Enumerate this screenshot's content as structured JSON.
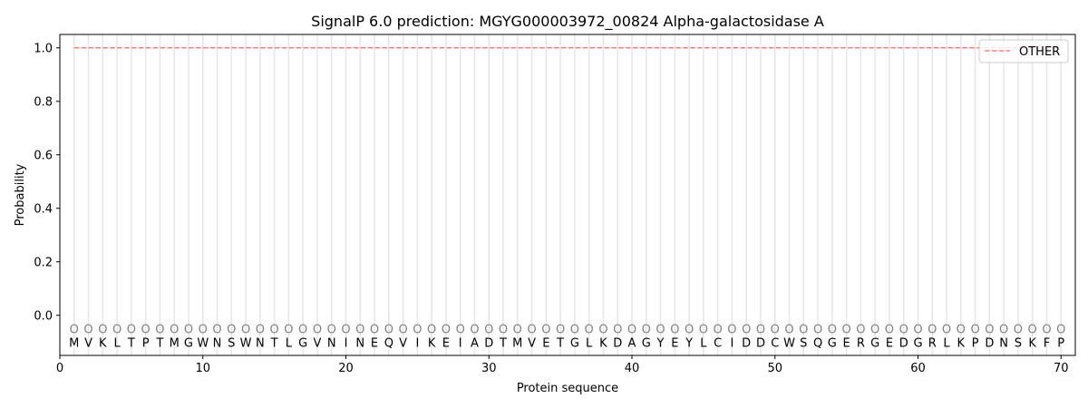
{
  "chart_data": {
    "type": "line",
    "title": "SignalP 6.0 prediction: MGYG000003972_00824 Alpha-galactosidase A",
    "xlabel": "Protein sequence",
    "ylabel": "Probability",
    "xlim": [
      0,
      71
    ],
    "ylim": [
      -0.15,
      1.05
    ],
    "xticks": [
      0,
      10,
      20,
      30,
      40,
      50,
      60,
      70
    ],
    "yticks": [
      "0.0",
      "0.2",
      "0.4",
      "0.6",
      "0.8",
      "1.0"
    ],
    "grid": "vertical lines at each residue",
    "legend_position": "top-right",
    "sequence": [
      "M",
      "V",
      "K",
      "L",
      "T",
      "P",
      "T",
      "M",
      "G",
      "W",
      "N",
      "S",
      "W",
      "N",
      "T",
      "L",
      "G",
      "V",
      "N",
      "I",
      "N",
      "E",
      "Q",
      "V",
      "I",
      "K",
      "E",
      "I",
      "A",
      "D",
      "T",
      "M",
      "V",
      "E",
      "T",
      "G",
      "L",
      "K",
      "D",
      "A",
      "G",
      "Y",
      "E",
      "Y",
      "L",
      "C",
      "I",
      "D",
      "D",
      "C",
      "W",
      "S",
      "Q",
      "G",
      "E",
      "R",
      "G",
      "E",
      "D",
      "G",
      "R",
      "L",
      "K",
      "P",
      "D",
      "N",
      "S",
      "K",
      "F",
      "P"
    ],
    "predicted_label": "O",
    "series": [
      {
        "name": "OTHER",
        "color": "#f08080",
        "style": "dashed",
        "x_range": [
          1,
          70
        ],
        "value": 1.0
      }
    ]
  }
}
